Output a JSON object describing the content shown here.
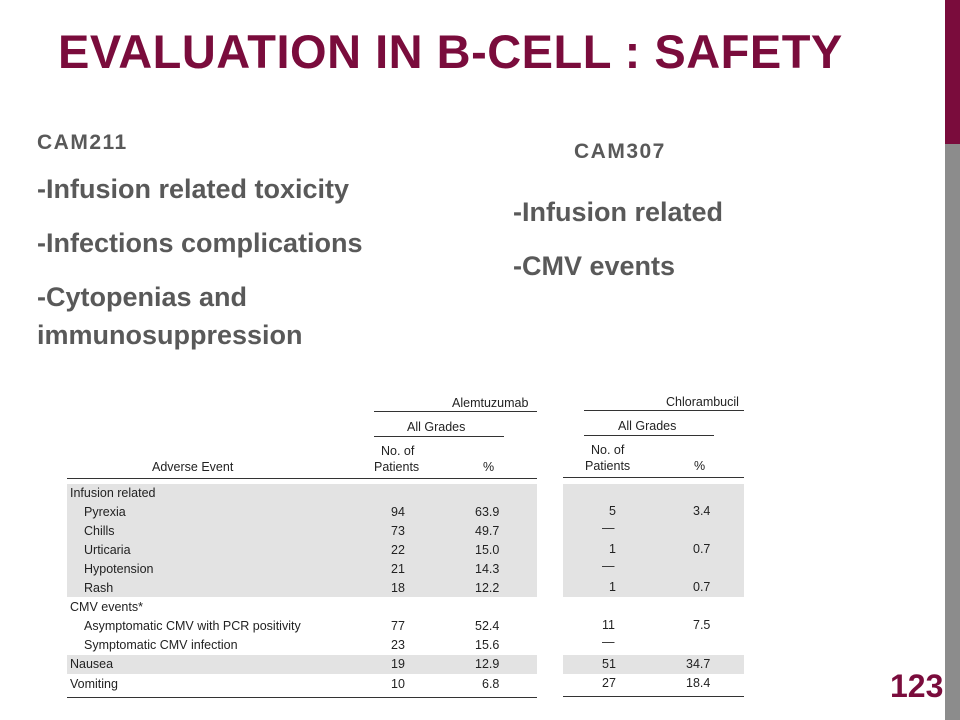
{
  "title": "EVALUATION IN B-CELL : SAFETY",
  "page_number": "123",
  "left": {
    "study": "CAM211",
    "bullets": [
      "-Infusion related toxicity",
      "-Infections complications",
      "-Cytopenias and immunosuppression"
    ]
  },
  "right": {
    "study": "CAM307",
    "bullets": [
      "-Infusion related",
      "-CMV events"
    ]
  },
  "table": {
    "group1": "Alemtuzumab",
    "group2": "Chlorambucil",
    "all_grades": "All Grades",
    "col_event": "Adverse Event",
    "col_no": "No. of",
    "col_patients": "Patients",
    "col_pct": "%",
    "rows": [
      {
        "label": "Infusion related",
        "a_n": "",
        "a_p": "",
        "c_n": "",
        "c_p": ""
      },
      {
        "label": "Pyrexia",
        "a_n": "94",
        "a_p": "63.9",
        "c_n": "5",
        "c_p": "3.4"
      },
      {
        "label": "Chills",
        "a_n": "73",
        "a_p": "49.7",
        "c_n": "—",
        "c_p": ""
      },
      {
        "label": "Urticaria",
        "a_n": "22",
        "a_p": "15.0",
        "c_n": "1",
        "c_p": "0.7"
      },
      {
        "label": "Hypotension",
        "a_n": "21",
        "a_p": "14.3",
        "c_n": "—",
        "c_p": ""
      },
      {
        "label": "Rash",
        "a_n": "18",
        "a_p": "12.2",
        "c_n": "1",
        "c_p": "0.7"
      },
      {
        "label": "CMV events*",
        "a_n": "",
        "a_p": "",
        "c_n": "",
        "c_p": ""
      },
      {
        "label": "Asymptomatic CMV with PCR positivity",
        "a_n": "77",
        "a_p": "52.4",
        "c_n": "11",
        "c_p": "7.5"
      },
      {
        "label": "Symptomatic CMV infection",
        "a_n": "23",
        "a_p": "15.6",
        "c_n": "—",
        "c_p": ""
      },
      {
        "label": "Nausea",
        "a_n": "19",
        "a_p": "12.9",
        "c_n": "51",
        "c_p": "34.7"
      },
      {
        "label": "Vomiting",
        "a_n": "10",
        "a_p": "6.8",
        "c_n": "27",
        "c_p": "18.4"
      }
    ]
  }
}
